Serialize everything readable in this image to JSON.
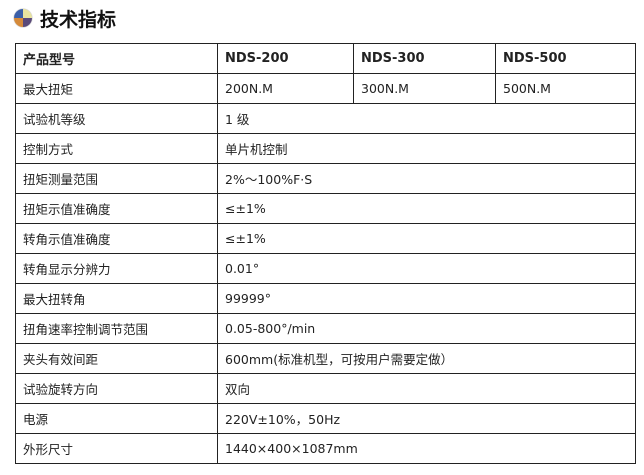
{
  "title": "技术指标",
  "icon": "pie-quadrant-icon",
  "header": {
    "label": "产品型号",
    "models": [
      "NDS-200",
      "NDS-300",
      "NDS-500"
    ]
  },
  "torque_row": {
    "label": "最大扭矩",
    "values": [
      "200N.M",
      "300N.M",
      "500N.M"
    ]
  },
  "rows": [
    {
      "label": "试验机等级",
      "value": "1 级"
    },
    {
      "label": "控制方式",
      "value": "单片机控制"
    },
    {
      "label": "扭矩测量范围",
      "value": "2%～100%F·S"
    },
    {
      "label": "扭矩示值准确度",
      "value": "≤±1%"
    },
    {
      "label": "转角示值准确度",
      "value": "≤±1%"
    },
    {
      "label": "转角显示分辨力",
      "value": "0.01°"
    },
    {
      "label": "最大扭转角",
      "value": "99999°"
    },
    {
      "label": "扭角速率控制调节范围",
      "value": "0.05-800°/min"
    },
    {
      "label": "夹头有效间距",
      "value": "600mm(标准机型，可按用户需要定做）"
    },
    {
      "label": "试验旋转方向",
      "value": "双向"
    },
    {
      "label": "电源",
      "value": "220V±10%，50Hz"
    },
    {
      "label": "外形尺寸",
      "value": "1440×400×1087mm"
    }
  ]
}
